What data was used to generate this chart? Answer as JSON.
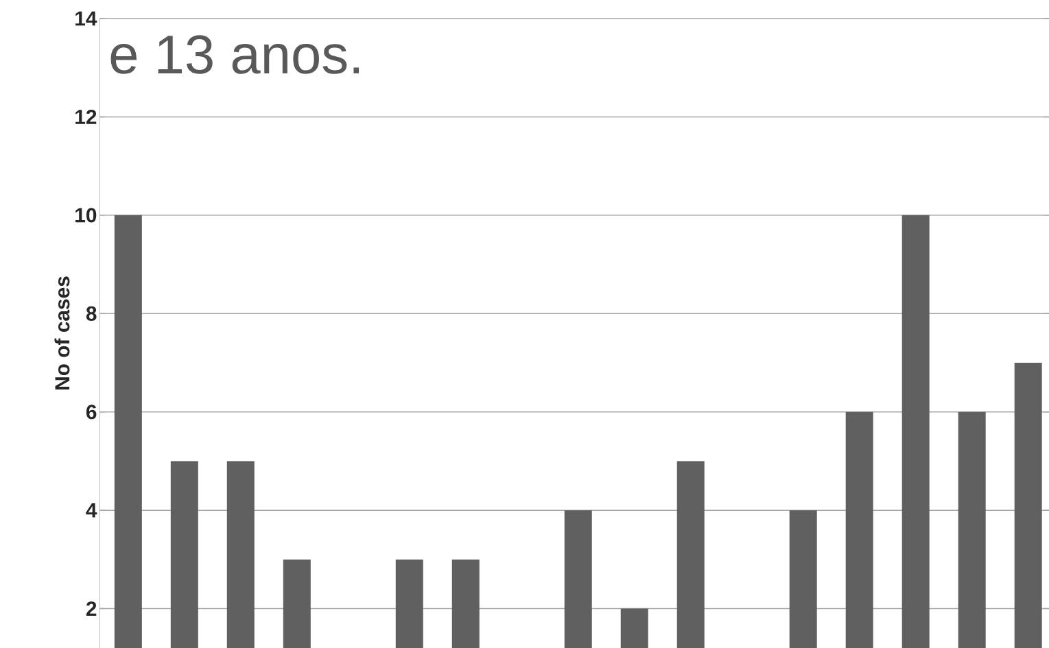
{
  "chart_data": {
    "type": "bar",
    "title": "e 13 anos.",
    "ylabel": "No of cases",
    "categories": [
      null,
      null,
      null,
      null,
      null,
      null,
      null,
      null,
      null,
      null,
      null,
      null,
      null,
      null,
      null,
      null,
      null
    ],
    "values": [
      10,
      5,
      5,
      3,
      null,
      3,
      3,
      null,
      4,
      2,
      5,
      null,
      4,
      6,
      10,
      6,
      7
    ],
    "color": "#606060",
    "ylim": [
      1.2,
      14
    ],
    "yticks": [
      2,
      4,
      6,
      8,
      10,
      12,
      14
    ],
    "grid": "y",
    "tick_labels": "y"
  }
}
